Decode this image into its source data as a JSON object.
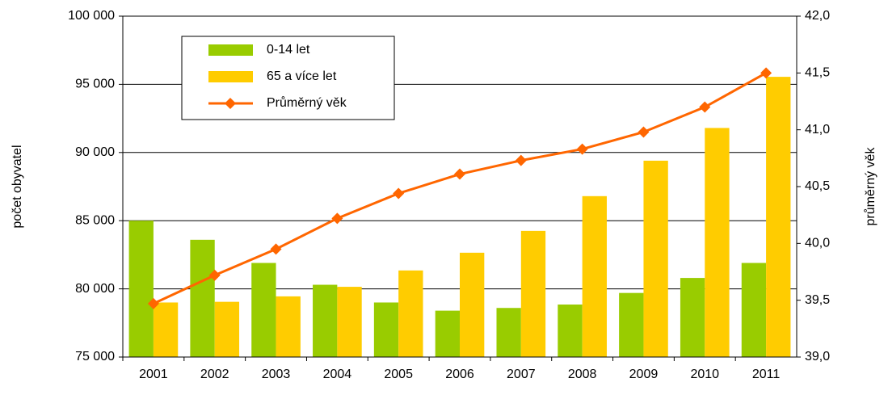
{
  "chart_data": {
    "type": "bar",
    "categories": [
      "2001",
      "2002",
      "2003",
      "2004",
      "2005",
      "2006",
      "2007",
      "2008",
      "2009",
      "2010",
      "2011"
    ],
    "series": [
      {
        "name": "0-14 let",
        "color": "#99cc00",
        "type": "bar",
        "values": [
          85000,
          83600,
          81900,
          80300,
          79000,
          78400,
          78600,
          78850,
          79700,
          80800,
          81900
        ]
      },
      {
        "name": "65 a více let",
        "color": "#ffcc00",
        "type": "bar",
        "values": [
          79000,
          79050,
          79450,
          80150,
          81350,
          82650,
          84250,
          86800,
          89400,
          91800,
          95550
        ]
      },
      {
        "name": "Průměrný věk",
        "color": "#ff6600",
        "type": "line",
        "axis": "y2",
        "values": [
          39.47,
          39.72,
          39.95,
          40.22,
          40.44,
          40.61,
          40.73,
          40.83,
          40.98,
          41.2,
          41.5
        ]
      }
    ],
    "ylabel": "počet obyvatel",
    "y2label": "průměrný věk",
    "ylim": [
      75000,
      100000
    ],
    "yticks": [
      {
        "value": 75000,
        "label": "75 000"
      },
      {
        "value": 80000,
        "label": "80 000"
      },
      {
        "value": 85000,
        "label": "85 000"
      },
      {
        "value": 90000,
        "label": "90 000"
      },
      {
        "value": 95000,
        "label": "95 000"
      },
      {
        "value": 100000,
        "label": "100 000"
      }
    ],
    "y2lim": [
      39,
      42
    ],
    "y2ticks": [
      {
        "value": 39,
        "label": "39,0"
      },
      {
        "value": 39.5,
        "label": "39,5"
      },
      {
        "value": 40,
        "label": "40,0"
      },
      {
        "value": 40.5,
        "label": "40,5"
      },
      {
        "value": 41,
        "label": "41,0"
      },
      {
        "value": 41.5,
        "label": "41,5"
      },
      {
        "value": 42,
        "label": "42,0"
      }
    ],
    "grid": true,
    "legend": "upper left"
  }
}
